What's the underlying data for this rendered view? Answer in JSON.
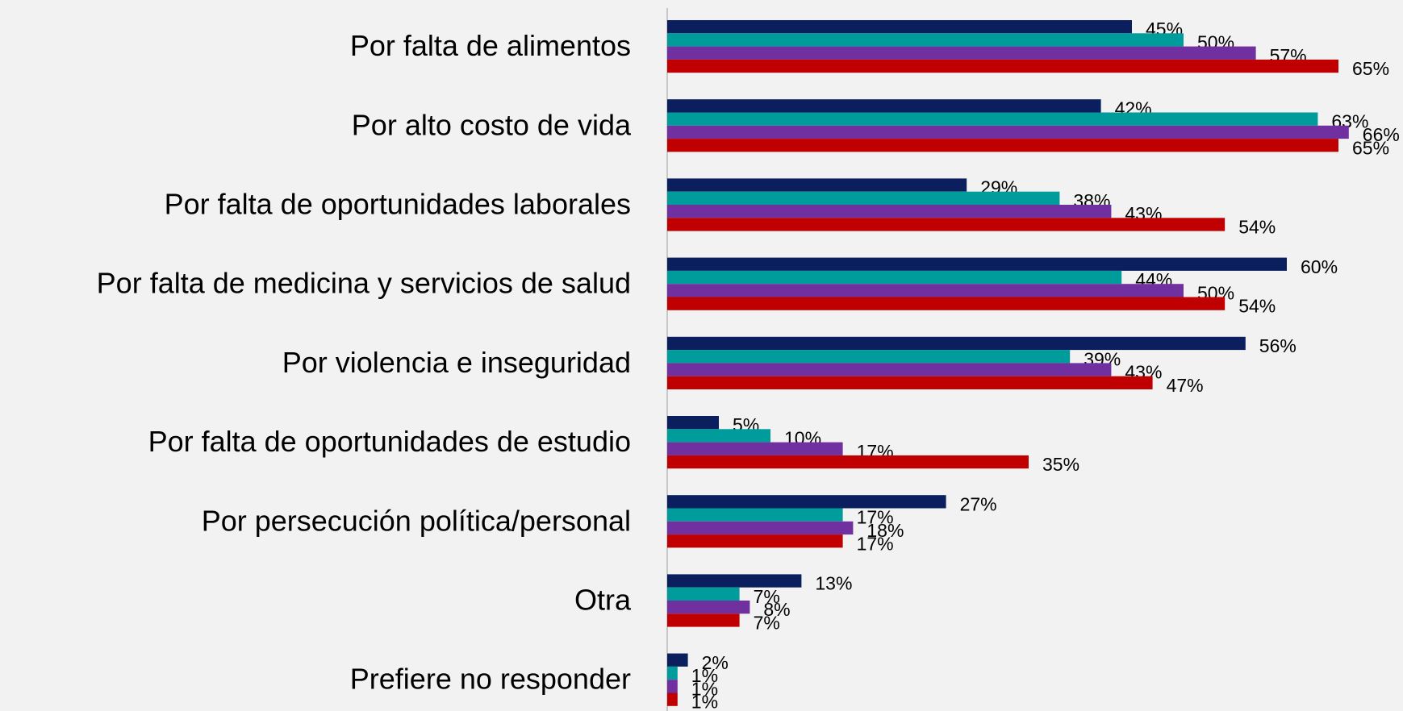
{
  "chart_data": {
    "type": "bar",
    "orientation": "horizontal",
    "categories": [
      "Por falta de alimentos",
      "Por alto costo de vida",
      "Por falta de oportunidades laborales",
      "Por falta de medicina y servicios de salud",
      "Por violencia e inseguridad",
      "Por falta de oportunidades de estudio",
      "Por persecución política/personal",
      "Otra",
      "Prefiere no responder"
    ],
    "series": [
      {
        "color": "#0b1f5e",
        "values": [
          45,
          42,
          29,
          60,
          56,
          5,
          27,
          13,
          2
        ],
        "value_labels": [
          "45%",
          "42%",
          "29%",
          "60%",
          "56%",
          "5%",
          "27%",
          "13%",
          "2%"
        ]
      },
      {
        "color": "#009b9b",
        "values": [
          50,
          63,
          38,
          44,
          39,
          10,
          17,
          7,
          1
        ],
        "value_labels": [
          "50%",
          "63%",
          "38%",
          "44%",
          "39%",
          "10%",
          "17%",
          "7%",
          "1%"
        ]
      },
      {
        "color": "#7030a0",
        "values": [
          57,
          66,
          43,
          50,
          43,
          17,
          18,
          8,
          1
        ],
        "value_labels": [
          "57%",
          "66%",
          "43%",
          "50%",
          "43%",
          "17%",
          "18%",
          "8%",
          "1%"
        ]
      },
      {
        "color": "#c00000",
        "values": [
          65,
          65,
          54,
          54,
          47,
          35,
          17,
          7,
          1
        ],
        "value_labels": [
          "65%",
          "65%",
          "54%",
          "54%",
          "47%",
          "35%",
          "17%",
          "7%",
          "1%"
        ]
      }
    ]
  }
}
